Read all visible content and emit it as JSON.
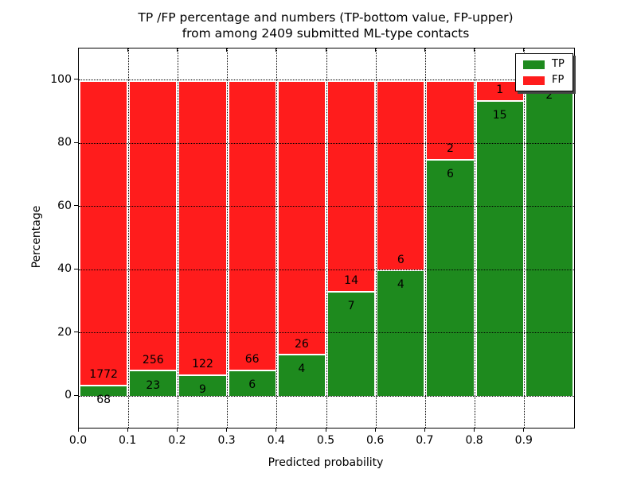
{
  "chart_data": {
    "type": "bar",
    "stacked": true,
    "normalized_to_percent": true,
    "title_line1": "TP /FP percentage and numbers (TP-bottom value, FP-upper)",
    "title_line2": "from among 2409 submitted ML-type contacts",
    "xlabel": "Predicted probability",
    "ylabel": "Percentage",
    "xlim": [
      0.0,
      1.0
    ],
    "ylim": [
      -10,
      110
    ],
    "grid": true,
    "ytick_values": [
      0,
      20,
      40,
      60,
      80,
      100
    ],
    "xtick_labels": [
      "0.0",
      "0.1",
      "0.2",
      "0.3",
      "0.4",
      "0.5",
      "0.6",
      "0.7",
      "0.8",
      "0.9"
    ],
    "bin_width": 0.1,
    "total_contacts": 2409,
    "colors": {
      "tp": "#1e8a1e",
      "fp": "#ff1c1c",
      "edge": "#ffffff"
    },
    "bars": [
      {
        "bin_start": 0.0,
        "tp": 68,
        "fp": 1772
      },
      {
        "bin_start": 0.1,
        "tp": 23,
        "fp": 256
      },
      {
        "bin_start": 0.2,
        "tp": 9,
        "fp": 122
      },
      {
        "bin_start": 0.3,
        "tp": 6,
        "fp": 66
      },
      {
        "bin_start": 0.4,
        "tp": 4,
        "fp": 26
      },
      {
        "bin_start": 0.5,
        "tp": 7,
        "fp": 14
      },
      {
        "bin_start": 0.6,
        "tp": 4,
        "fp": 6
      },
      {
        "bin_start": 0.7,
        "tp": 6,
        "fp": 2
      },
      {
        "bin_start": 0.8,
        "tp": 15,
        "fp": 1
      },
      {
        "bin_start": 0.9,
        "tp": 2,
        "fp": 0,
        "fp_label_hidden_behind_legend": true
      }
    ],
    "legend": {
      "position": "upper right",
      "entries": [
        {
          "label": "TP",
          "color": "#1e8a1e"
        },
        {
          "label": "FP",
          "color": "#ff1c1c"
        }
      ]
    }
  }
}
